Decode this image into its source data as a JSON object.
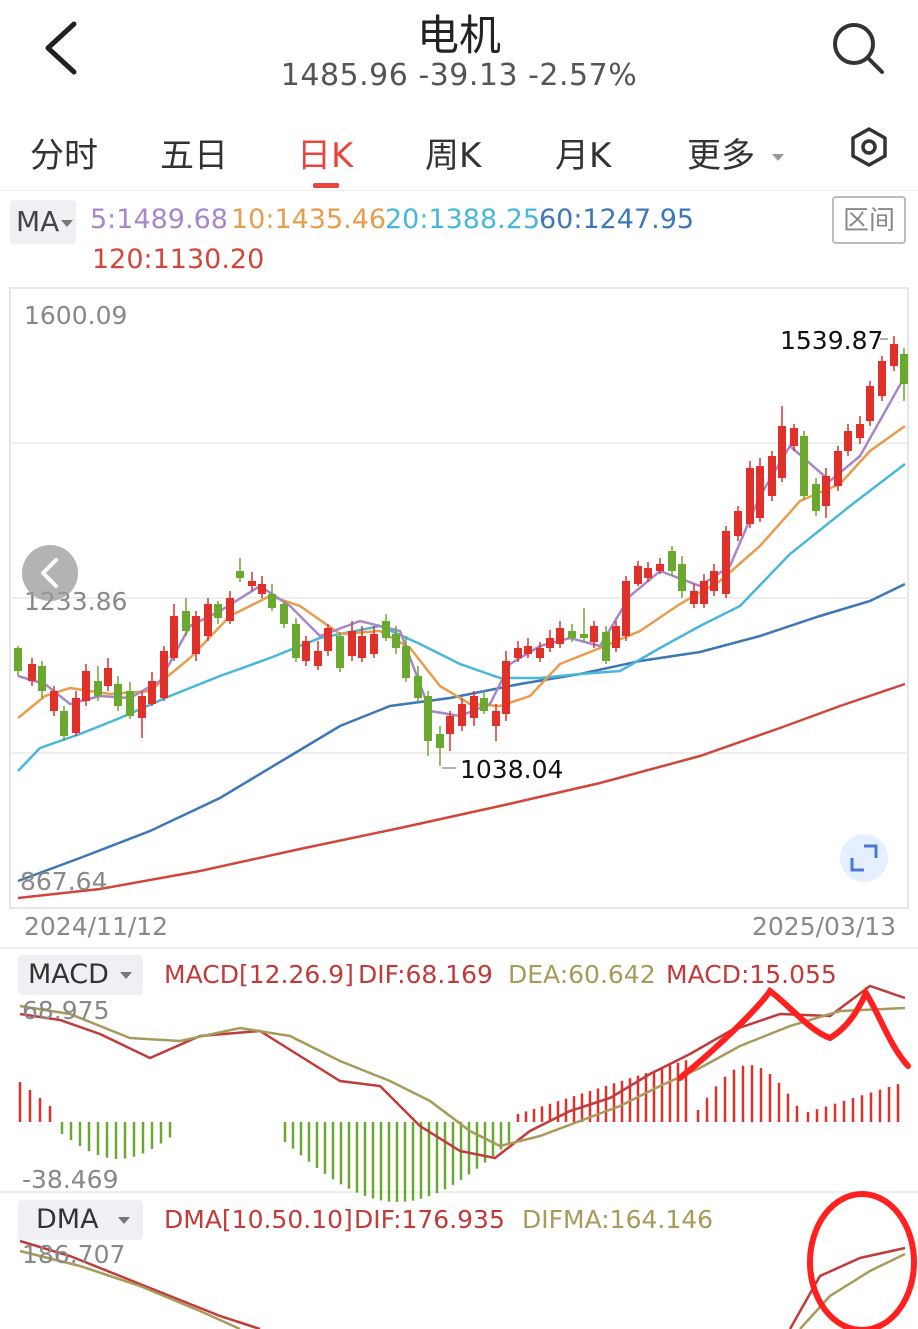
{
  "header": {
    "title": "电机",
    "quote": "1485.96 -39.13 -2.57%"
  },
  "tabs": [
    {
      "label": "分时"
    },
    {
      "label": "五日"
    },
    {
      "label": "日K"
    },
    {
      "label": "周K"
    },
    {
      "label": "月K"
    },
    {
      "label": "更多"
    }
  ],
  "ma": {
    "selector": "MA",
    "ma5": "5:1489.68",
    "ma10": "10:1435.46",
    "ma20": "20:1388.25",
    "ma60": "60:1247.95",
    "ma120": "120:1130.20",
    "range_button": "区间"
  },
  "colors": {
    "up": "#e0302a",
    "down": "#6aa82f",
    "ma5": "#a787c9",
    "ma10": "#e89d4c",
    "ma20": "#48b7dc",
    "ma60": "#3d77b5",
    "ma120": "#d2463a",
    "dif": "#c23b3b",
    "dea": "#a89a5a"
  },
  "price_axis": {
    "top": "1600.09",
    "mid": "1233.86",
    "bottom": "867.64",
    "high_label": "1539.87",
    "low_label": "1038.04"
  },
  "dates": {
    "start": "2024/11/12",
    "end": "2025/03/13"
  },
  "macd": {
    "selector": "MACD",
    "params": "MACD[12.26.9]",
    "dif": "DIF:68.169",
    "dea": "DEA:60.642",
    "macd": "MACD:15.055",
    "axis_top": "68.975",
    "axis_bottom": "-38.469"
  },
  "dma": {
    "selector": "DMA",
    "params": "DMA[10.50.10]",
    "dif": "DIF:176.935",
    "difma": "DIFMA:164.146",
    "axis_top": "186.707"
  },
  "icons": [
    "back-arrow-icon",
    "search-icon",
    "settings-hexagon-icon",
    "chevron-left-icon",
    "fullscreen-icon",
    "dropdown-caret-icon"
  ]
}
